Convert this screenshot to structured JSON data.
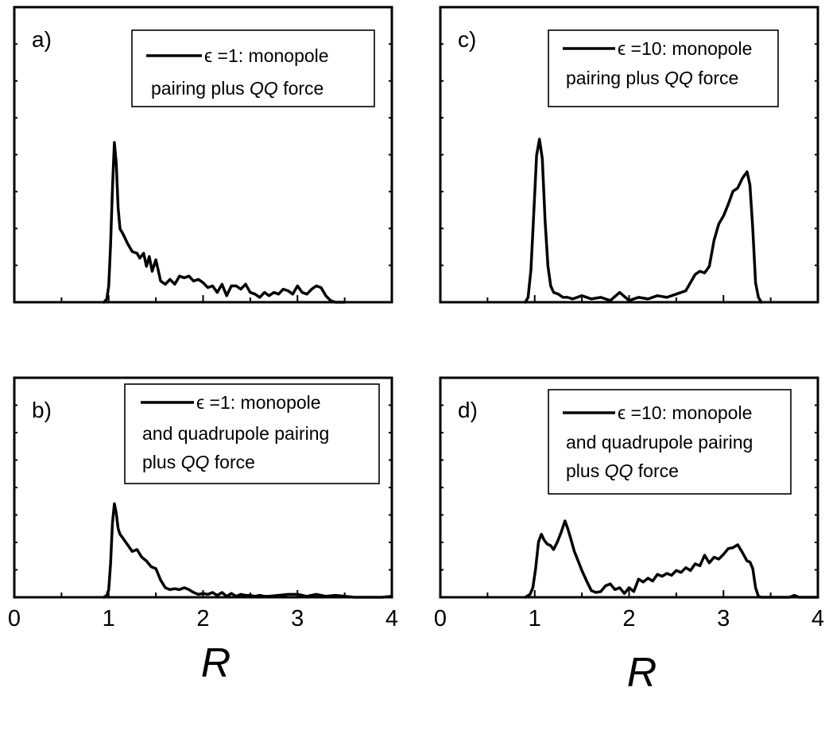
{
  "chart_data": [
    {
      "type": "line",
      "panel_label": "a)",
      "xlim": [
        0,
        4
      ],
      "x_tick_labels": [],
      "xlabel": "",
      "legend": {
        "lines": [
          [
            {
              "t": "ϵ =1: monopole",
              "i": false
            }
          ],
          [
            {
              "t": "pairing plus ",
              "i": false
            },
            {
              "t": "QQ",
              "i": true
            },
            {
              "t": " force",
              "i": false
            }
          ]
        ]
      },
      "series": [
        {
          "name": "ϵ =1: monopole pairing plus QQ force",
          "x": [
            0.95,
            0.98,
            1.0,
            1.02,
            1.04,
            1.06,
            1.08,
            1.1,
            1.12,
            1.15,
            1.2,
            1.25,
            1.3,
            1.33,
            1.37,
            1.4,
            1.43,
            1.46,
            1.5,
            1.55,
            1.6,
            1.65,
            1.7,
            1.75,
            1.8,
            1.85,
            1.9,
            1.95,
            2.0,
            2.05,
            2.1,
            2.15,
            2.2,
            2.25,
            2.3,
            2.35,
            2.4,
            2.45,
            2.5,
            2.55,
            2.6,
            2.65,
            2.7,
            2.75,
            2.8,
            2.85,
            2.9,
            2.95,
            3.0,
            3.05,
            3.1,
            3.15,
            3.2,
            3.25,
            3.3,
            3.35,
            3.4,
            3.45,
            3.5
          ],
          "y": [
            0,
            0.02,
            0.1,
            0.35,
            0.7,
            0.98,
            0.85,
            0.58,
            0.45,
            0.42,
            0.36,
            0.31,
            0.3,
            0.27,
            0.3,
            0.22,
            0.28,
            0.19,
            0.26,
            0.13,
            0.11,
            0.14,
            0.11,
            0.16,
            0.15,
            0.16,
            0.13,
            0.14,
            0.12,
            0.09,
            0.1,
            0.06,
            0.11,
            0.04,
            0.1,
            0.1,
            0.08,
            0.11,
            0.06,
            0.05,
            0.03,
            0.06,
            0.04,
            0.06,
            0.05,
            0.08,
            0.07,
            0.05,
            0.1,
            0.06,
            0.05,
            0.08,
            0.1,
            0.09,
            0.04,
            0.01,
            0.0,
            0.0,
            0.0
          ]
        }
      ]
    },
    {
      "type": "line",
      "panel_label": "c)",
      "xlim": [
        0,
        4
      ],
      "x_tick_labels": [],
      "xlabel": "",
      "legend": {
        "lines": [
          [
            {
              "t": "ϵ =10: monopole",
              "i": false
            }
          ],
          [
            {
              "t": "pairing plus ",
              "i": false
            },
            {
              "t": "QQ",
              "i": true
            },
            {
              "t": " force",
              "i": false
            }
          ]
        ]
      },
      "series": [
        {
          "name": "ϵ =10: monopole pairing plus QQ force",
          "x": [
            0.9,
            0.93,
            0.96,
            0.99,
            1.02,
            1.05,
            1.08,
            1.11,
            1.14,
            1.17,
            1.2,
            1.25,
            1.3,
            1.35,
            1.4,
            1.5,
            1.6,
            1.7,
            1.8,
            1.9,
            2.0,
            2.1,
            2.2,
            2.3,
            2.4,
            2.5,
            2.6,
            2.7,
            2.75,
            2.8,
            2.85,
            2.9,
            2.95,
            3.0,
            3.05,
            3.1,
            3.15,
            3.2,
            3.25,
            3.28,
            3.31,
            3.34,
            3.37,
            3.4
          ],
          "y": [
            0,
            0.03,
            0.2,
            0.55,
            0.9,
            1.0,
            0.88,
            0.5,
            0.22,
            0.1,
            0.06,
            0.05,
            0.03,
            0.03,
            0.02,
            0.04,
            0.02,
            0.03,
            0.01,
            0.06,
            0.01,
            0.03,
            0.02,
            0.04,
            0.03,
            0.05,
            0.07,
            0.17,
            0.19,
            0.18,
            0.22,
            0.38,
            0.48,
            0.53,
            0.6,
            0.68,
            0.7,
            0.76,
            0.8,
            0.72,
            0.45,
            0.12,
            0.03,
            0.0
          ]
        }
      ]
    },
    {
      "type": "line",
      "panel_label": "b)",
      "xlim": [
        0,
        4
      ],
      "x_tick_labels": [
        "0",
        "1",
        "2",
        "3",
        "4"
      ],
      "xlabel": "R",
      "legend": {
        "lines": [
          [
            {
              "t": "ϵ =1: monopole",
              "i": false
            }
          ],
          [
            {
              "t": "and quadrupole pairing",
              "i": false
            }
          ],
          [
            {
              "t": "plus ",
              "i": false
            },
            {
              "t": "QQ",
              "i": true
            },
            {
              "t": " force",
              "i": false
            }
          ]
        ]
      },
      "series": [
        {
          "name": "ϵ =1: monopole and quadrupole pairing plus QQ force",
          "x": [
            0.95,
            0.98,
            1.0,
            1.02,
            1.04,
            1.06,
            1.08,
            1.1,
            1.12,
            1.15,
            1.2,
            1.25,
            1.3,
            1.35,
            1.4,
            1.45,
            1.5,
            1.55,
            1.6,
            1.65,
            1.7,
            1.75,
            1.8,
            1.85,
            1.9,
            1.95,
            2.0,
            2.05,
            2.1,
            2.15,
            2.2,
            2.25,
            2.3,
            2.35,
            2.4,
            2.45,
            2.5,
            2.55,
            2.6,
            2.65,
            2.7,
            2.8,
            2.9,
            3.0,
            3.1,
            3.2,
            3.3,
            3.4,
            3.5,
            3.6,
            3.7,
            3.8,
            3.9,
            4.0
          ],
          "y": [
            0,
            0.02,
            0.08,
            0.35,
            0.78,
            0.98,
            0.88,
            0.72,
            0.66,
            0.62,
            0.55,
            0.48,
            0.5,
            0.42,
            0.38,
            0.32,
            0.3,
            0.18,
            0.1,
            0.08,
            0.09,
            0.08,
            0.1,
            0.08,
            0.05,
            0.03,
            0.04,
            0.03,
            0.05,
            0.02,
            0.05,
            0.01,
            0.04,
            0.01,
            0.03,
            0.02,
            0.02,
            0.01,
            0.02,
            0.01,
            0.01,
            0.02,
            0.03,
            0.03,
            0.01,
            0.03,
            0.01,
            0.02,
            0.01,
            0.0,
            0.0,
            0.0,
            0.0,
            0.01
          ]
        }
      ]
    },
    {
      "type": "line",
      "panel_label": "d)",
      "xlim": [
        0,
        4
      ],
      "x_tick_labels": [
        "0",
        "1",
        "2",
        "3",
        "4"
      ],
      "xlabel": "R",
      "legend": {
        "lines": [
          [
            {
              "t": "ϵ =10: monopole",
              "i": false
            }
          ],
          [
            {
              "t": "and quadrupole pairing",
              "i": false
            }
          ],
          [
            {
              "t": "plus ",
              "i": false
            },
            {
              "t": "QQ",
              "i": true
            },
            {
              "t": " force",
              "i": false
            }
          ]
        ]
      },
      "series": [
        {
          "name": "ϵ =10: monopole and quadrupole pairing plus QQ force",
          "x": [
            0.9,
            0.95,
            0.98,
            1.01,
            1.04,
            1.07,
            1.1,
            1.13,
            1.17,
            1.2,
            1.24,
            1.28,
            1.32,
            1.35,
            1.38,
            1.42,
            1.46,
            1.5,
            1.55,
            1.6,
            1.65,
            1.7,
            1.75,
            1.8,
            1.85,
            1.9,
            1.95,
            2.0,
            2.05,
            2.1,
            2.15,
            2.2,
            2.25,
            2.3,
            2.35,
            2.4,
            2.45,
            2.5,
            2.55,
            2.6,
            2.65,
            2.7,
            2.75,
            2.8,
            2.85,
            2.9,
            2.95,
            3.0,
            3.05,
            3.1,
            3.15,
            3.2,
            3.25,
            3.28,
            3.31,
            3.34,
            3.37,
            3.4,
            3.5,
            3.6,
            3.7,
            3.75,
            3.8,
            3.9,
            4.0
          ],
          "y": [
            0,
            0.03,
            0.1,
            0.3,
            0.58,
            0.66,
            0.6,
            0.56,
            0.54,
            0.5,
            0.58,
            0.68,
            0.8,
            0.72,
            0.62,
            0.48,
            0.38,
            0.28,
            0.17,
            0.07,
            0.05,
            0.06,
            0.12,
            0.14,
            0.08,
            0.1,
            0.04,
            0.1,
            0.06,
            0.19,
            0.16,
            0.2,
            0.17,
            0.24,
            0.22,
            0.25,
            0.23,
            0.28,
            0.26,
            0.31,
            0.28,
            0.35,
            0.33,
            0.44,
            0.36,
            0.42,
            0.4,
            0.45,
            0.51,
            0.52,
            0.55,
            0.47,
            0.38,
            0.37,
            0.3,
            0.1,
            0.01,
            0.0,
            0.0,
            0.0,
            0.0,
            0.02,
            0.0,
            0.0,
            0.0
          ]
        }
      ]
    }
  ]
}
